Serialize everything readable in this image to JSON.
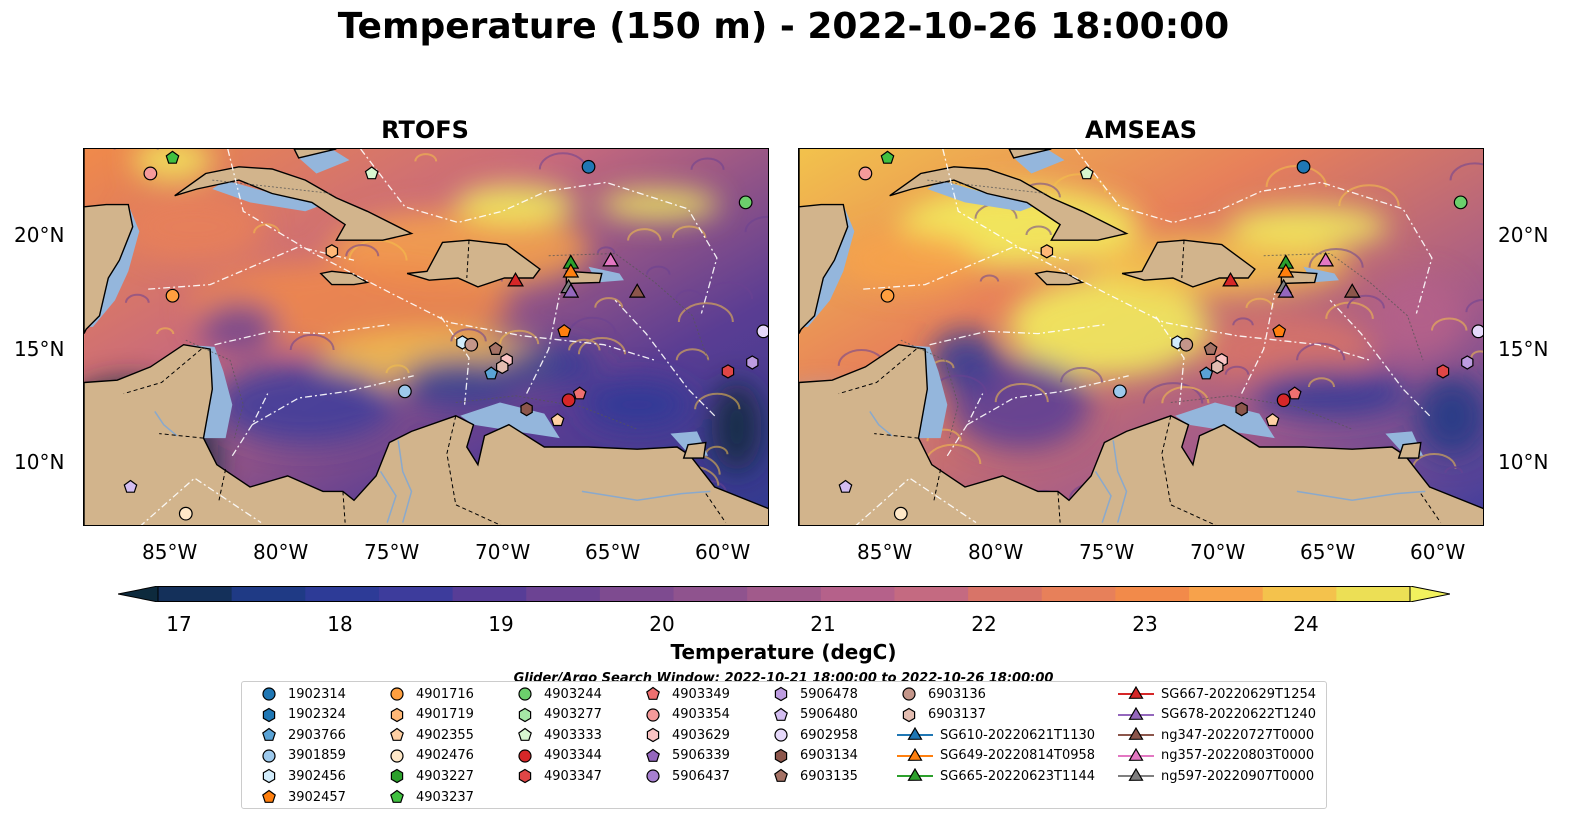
{
  "title": "Temperature (150 m) - 2022-10-26 18:00:00",
  "panels": [
    {
      "title": "RTOFS",
      "variant": "rtofs"
    },
    {
      "title": "AMSEAS",
      "variant": "amseas"
    }
  ],
  "axes": {
    "lat_labels": [
      "20°N",
      "15°N",
      "10°N"
    ],
    "lon_labels": [
      "85°W",
      "80°W",
      "75°W",
      "70°W",
      "65°W",
      "60°W"
    ]
  },
  "colorbar": {
    "label": "Temperature (degC)",
    "ticks": [
      "17",
      "18",
      "19",
      "20",
      "21",
      "22",
      "23",
      "24"
    ],
    "min": 16.5,
    "max": 24.5,
    "step": 0.5,
    "colors": [
      "#0d2a3d",
      "#14305a",
      "#1f3a85",
      "#2d3b97",
      "#3d3c9c",
      "#573d97",
      "#6c4393",
      "#7e4b90",
      "#8f538e",
      "#a15a8b",
      "#b5618a",
      "#c46a81",
      "#d87468",
      "#e7805a",
      "#f28a4a",
      "#f7a24b",
      "#f4c24c",
      "#ecdf55",
      "#f2f25e"
    ],
    "extend": "both"
  },
  "search_window": "Glider/Argo Search Window: 2022-10-21 18:00:00 to 2022-10-26 18:00:00",
  "legend": [
    {
      "label": "1902314",
      "marker": "circle",
      "color": "#1f77b4"
    },
    {
      "label": "1902324",
      "marker": "hexagon",
      "color": "#1f77b4"
    },
    {
      "label": "2903766",
      "marker": "pentagon",
      "color": "#5aa3d6"
    },
    {
      "label": "3901859",
      "marker": "circle",
      "color": "#9dc9ec"
    },
    {
      "label": "3902456",
      "marker": "hexagon",
      "color": "#d2ecfb"
    },
    {
      "label": "3902457",
      "marker": "pentagon",
      "color": "#ff7f0e"
    },
    {
      "label": "4901716",
      "marker": "circle",
      "color": "#ff9f3f"
    },
    {
      "label": "4901719",
      "marker": "hexagon",
      "color": "#ffb877"
    },
    {
      "label": "4902355",
      "marker": "pentagon",
      "color": "#ffd0a3"
    },
    {
      "label": "4902476",
      "marker": "circle",
      "color": "#ffe8c8"
    },
    {
      "label": "4903227",
      "marker": "hexagon",
      "color": "#2ca02c"
    },
    {
      "label": "4903237",
      "marker": "pentagon",
      "color": "#40c040"
    },
    {
      "label": "4903244",
      "marker": "circle",
      "color": "#6ccf6c"
    },
    {
      "label": "4903277",
      "marker": "hexagon",
      "color": "#a6e7a6"
    },
    {
      "label": "4903333",
      "marker": "pentagon",
      "color": "#d8f7d0"
    },
    {
      "label": "4903344",
      "marker": "circle",
      "color": "#d62728"
    },
    {
      "label": "4903347",
      "marker": "hexagon",
      "color": "#e04646"
    },
    {
      "label": "4903349",
      "marker": "pentagon",
      "color": "#ee7070"
    },
    {
      "label": "4903354",
      "marker": "circle",
      "color": "#f59a9a"
    },
    {
      "label": "4903629",
      "marker": "hexagon",
      "color": "#fac3c3"
    },
    {
      "label": "5906339",
      "marker": "pentagon",
      "color": "#9467bd"
    },
    {
      "label": "5906437",
      "marker": "circle",
      "color": "#a77fd0"
    },
    {
      "label": "5906478",
      "marker": "hexagon",
      "color": "#bd9ce0"
    },
    {
      "label": "5906480",
      "marker": "pentagon",
      "color": "#d3bdf0"
    },
    {
      "label": "6902958",
      "marker": "circle",
      "color": "#e6d8fa"
    },
    {
      "label": "6903134",
      "marker": "hexagon",
      "color": "#8c564b"
    },
    {
      "label": "6903135",
      "marker": "pentagon",
      "color": "#a57265"
    },
    {
      "label": "6903136",
      "marker": "circle",
      "color": "#c4968a"
    },
    {
      "label": "6903137",
      "marker": "hexagon",
      "color": "#e3bdb1"
    },
    {
      "label": "SG610-20220621T1130",
      "marker": "triangle-line",
      "color": "#1f77b4"
    },
    {
      "label": "SG649-20220814T0958",
      "marker": "triangle-line",
      "color": "#ff7f0e"
    },
    {
      "label": "SG665-20220623T1144",
      "marker": "triangle-line",
      "color": "#2ca02c"
    },
    {
      "label": "SG667-20220629T1254",
      "marker": "triangle-line",
      "color": "#d62728"
    },
    {
      "label": "SG678-20220622T1240",
      "marker": "triangle-line",
      "color": "#9467bd"
    },
    {
      "label": "ng347-20220727T0000",
      "marker": "triangle-line",
      "color": "#8c564b"
    },
    {
      "label": "ng357-20220803T0000",
      "marker": "triangle-line",
      "color": "#e377c2"
    },
    {
      "label": "ng597-20220907T0000",
      "marker": "triangle-line",
      "color": "#7f7f7f"
    }
  ],
  "map_extent": {
    "lon": [
      -89,
      -58
    ],
    "lat": [
      7,
      24
    ]
  },
  "platforms": [
    {
      "id": "1902314",
      "lon": -66.2,
      "lat": 23.2
    },
    {
      "id": "4903237",
      "lon": -85.0,
      "lat": 23.6
    },
    {
      "id": "4903354",
      "lon": -86.0,
      "lat": 22.9
    },
    {
      "id": "4903333",
      "lon": -76.0,
      "lat": 22.9
    },
    {
      "id": "4903244",
      "lon": -59.1,
      "lat": 21.6
    },
    {
      "id": "4901719",
      "lon": -77.8,
      "lat": 19.4
    },
    {
      "id": "4901716",
      "lon": -85.0,
      "lat": 17.4
    },
    {
      "id": "3902457",
      "lon": -67.3,
      "lat": 15.8
    },
    {
      "id": "6902958",
      "lon": -58.3,
      "lat": 15.8
    },
    {
      "id": "3902456",
      "lon": -71.9,
      "lat": 15.3
    },
    {
      "id": "6903136",
      "lon": -71.5,
      "lat": 15.2
    },
    {
      "id": "6903135",
      "lon": -70.4,
      "lat": 15.0
    },
    {
      "id": "4903629",
      "lon": -69.9,
      "lat": 14.5
    },
    {
      "id": "6903137",
      "lon": -70.1,
      "lat": 14.2
    },
    {
      "id": "2903766",
      "lon": -70.6,
      "lat": 13.9
    },
    {
      "id": "5906478",
      "lon": -58.8,
      "lat": 14.4
    },
    {
      "id": "4903347",
      "lon": -59.9,
      "lat": 14.0
    },
    {
      "id": "3901859",
      "lon": -74.5,
      "lat": 13.1
    },
    {
      "id": "4903349",
      "lon": -66.6,
      "lat": 13.0
    },
    {
      "id": "4903344",
      "lon": -67.1,
      "lat": 12.7
    },
    {
      "id": "6903134",
      "lon": -69.0,
      "lat": 12.3
    },
    {
      "id": "4902355",
      "lon": -67.6,
      "lat": 11.8
    },
    {
      "id": "5906480",
      "lon": -86.9,
      "lat": 8.8
    },
    {
      "id": "4902476",
      "lon": -84.4,
      "lat": 7.6
    },
    {
      "id": "SG667-20220629T1254",
      "lon": -69.5,
      "lat": 18.1
    },
    {
      "id": "SG665-20220623T1144",
      "lon": -67.0,
      "lat": 18.9
    },
    {
      "id": "ng357-20220803T0000",
      "lon": -65.2,
      "lat": 19.0
    },
    {
      "id": "SG649-20220814T0958",
      "lon": -67.0,
      "lat": 18.5
    },
    {
      "id": "ng597-20220907T0000",
      "lon": -67.1,
      "lat": 17.8
    },
    {
      "id": "SG678-20220622T1240",
      "lon": -67.0,
      "lat": 17.6
    },
    {
      "id": "ng347-20220727T0000",
      "lon": -64.0,
      "lat": 17.6
    }
  ]
}
